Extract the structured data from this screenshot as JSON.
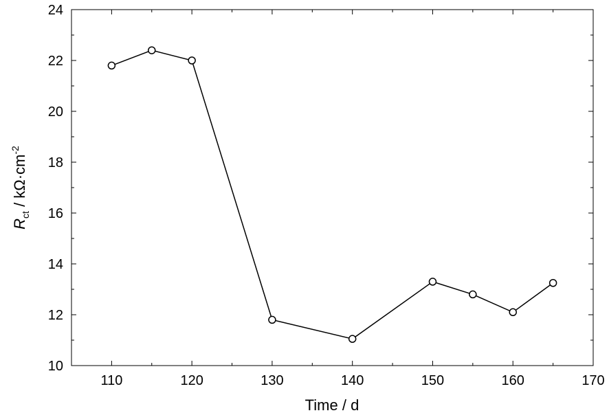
{
  "chart_data": {
    "type": "line",
    "xlabel": "Time / d",
    "ylabel": {
      "symbol": "R",
      "subscript": "ct",
      "unit": " / kΩ·cm",
      "exponent": "-2"
    },
    "xlim": [
      105,
      170
    ],
    "ylim": [
      10,
      24
    ],
    "x_ticks": [
      110,
      120,
      130,
      140,
      150,
      160,
      170
    ],
    "y_ticks": [
      10,
      12,
      14,
      16,
      18,
      20,
      22,
      24
    ],
    "x_minor_step": 5,
    "y_minor_step": 1,
    "grid": false,
    "legend": "none",
    "series": [
      {
        "x": [
          110,
          115,
          120,
          130,
          140,
          150,
          155,
          160,
          165
        ],
        "y": [
          21.8,
          22.4,
          22.0,
          11.8,
          11.05,
          13.3,
          12.8,
          12.1,
          13.25
        ],
        "marker": "open-circle",
        "line_color": "#000000"
      }
    ]
  }
}
